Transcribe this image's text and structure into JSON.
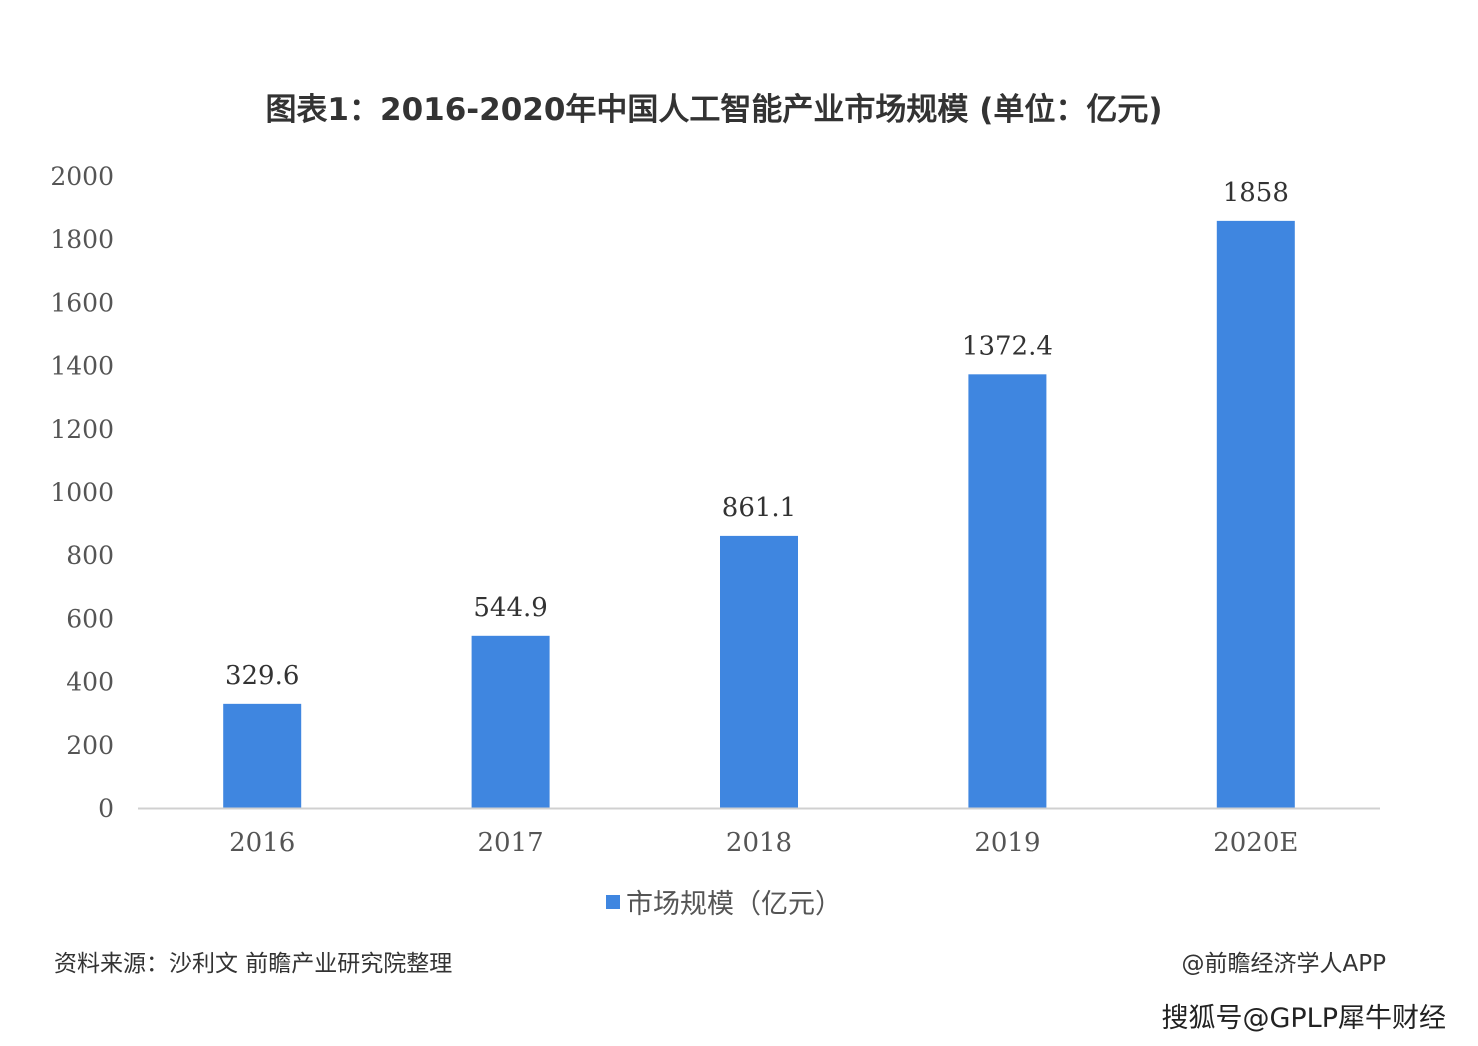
{
  "chart_data": {
    "type": "bar",
    "title": "图表1：2016-2020年中国人工智能产业市场规模 (单位：亿元)",
    "categories": [
      "2016",
      "2017",
      "2018",
      "2019",
      "2020E"
    ],
    "series": [
      {
        "name": "市场规模（亿元）",
        "values": [
          329.6,
          544.9,
          861.1,
          1372.4,
          1858
        ],
        "data_labels": [
          "329.6",
          "544.9",
          "861.1",
          "1372.4",
          "1858"
        ]
      }
    ],
    "ylim": [
      0,
      2000
    ],
    "yticks": [
      "0",
      "200",
      "400",
      "600",
      "800",
      "1000",
      "1200",
      "1400",
      "1600",
      "1800",
      "2000"
    ],
    "grid": false,
    "legend_position": "bottom",
    "bar_color": "#3f86e0",
    "axis_color": "#d0d0d0"
  },
  "footer": {
    "source": "资料来源：沙利文 前瞻产业研究院整理",
    "credit": "@前瞻经济学人APP"
  },
  "watermark": {
    "text": "搜狐号@GPLP犀牛财经"
  }
}
